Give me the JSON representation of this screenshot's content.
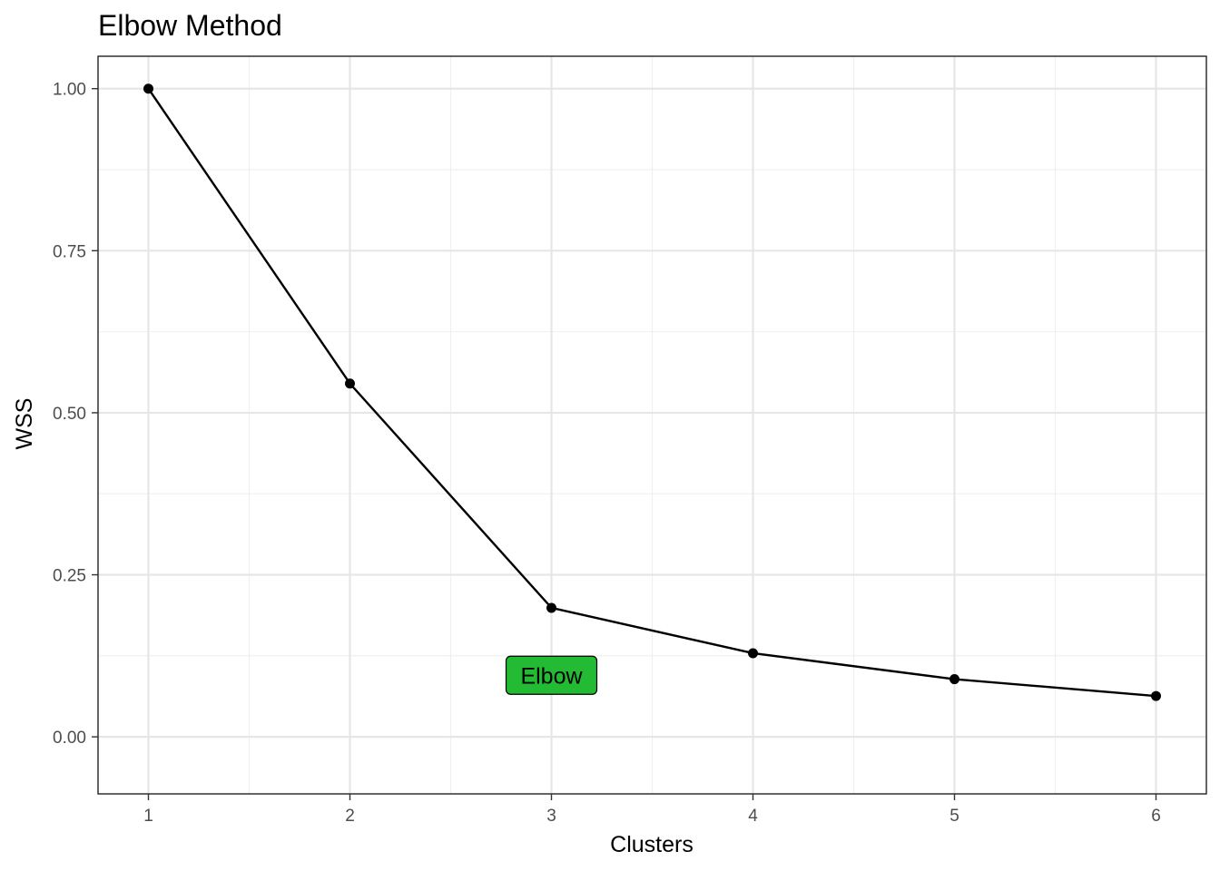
{
  "chart_data": {
    "type": "line",
    "title": "Elbow Method",
    "xlabel": "Clusters",
    "ylabel": "WSS",
    "x": [
      1,
      2,
      3,
      4,
      5,
      6
    ],
    "series": [
      {
        "values": [
          1.0,
          0.545,
          0.199,
          0.129,
          0.089,
          0.063
        ]
      }
    ],
    "xlim": [
      0.75,
      6.25
    ],
    "ylim": [
      -0.088,
      1.05
    ],
    "x_ticks": [
      1,
      2,
      3,
      4,
      5,
      6
    ],
    "x_tick_labels": [
      "1",
      "2",
      "3",
      "4",
      "5",
      "6"
    ],
    "y_ticks": [
      0,
      0.25,
      0.5,
      0.75,
      1.0
    ],
    "y_tick_labels": [
      "0.00",
      "0.25",
      "0.50",
      "0.75",
      "1.00"
    ],
    "grid": true,
    "legend": "none",
    "annotations": [
      {
        "text": "Elbow",
        "x": 3,
        "y": 0.095,
        "fill": "#22bb33"
      }
    ],
    "colors": {
      "line": "#000000",
      "annotation_fill": "#22bb33"
    }
  }
}
